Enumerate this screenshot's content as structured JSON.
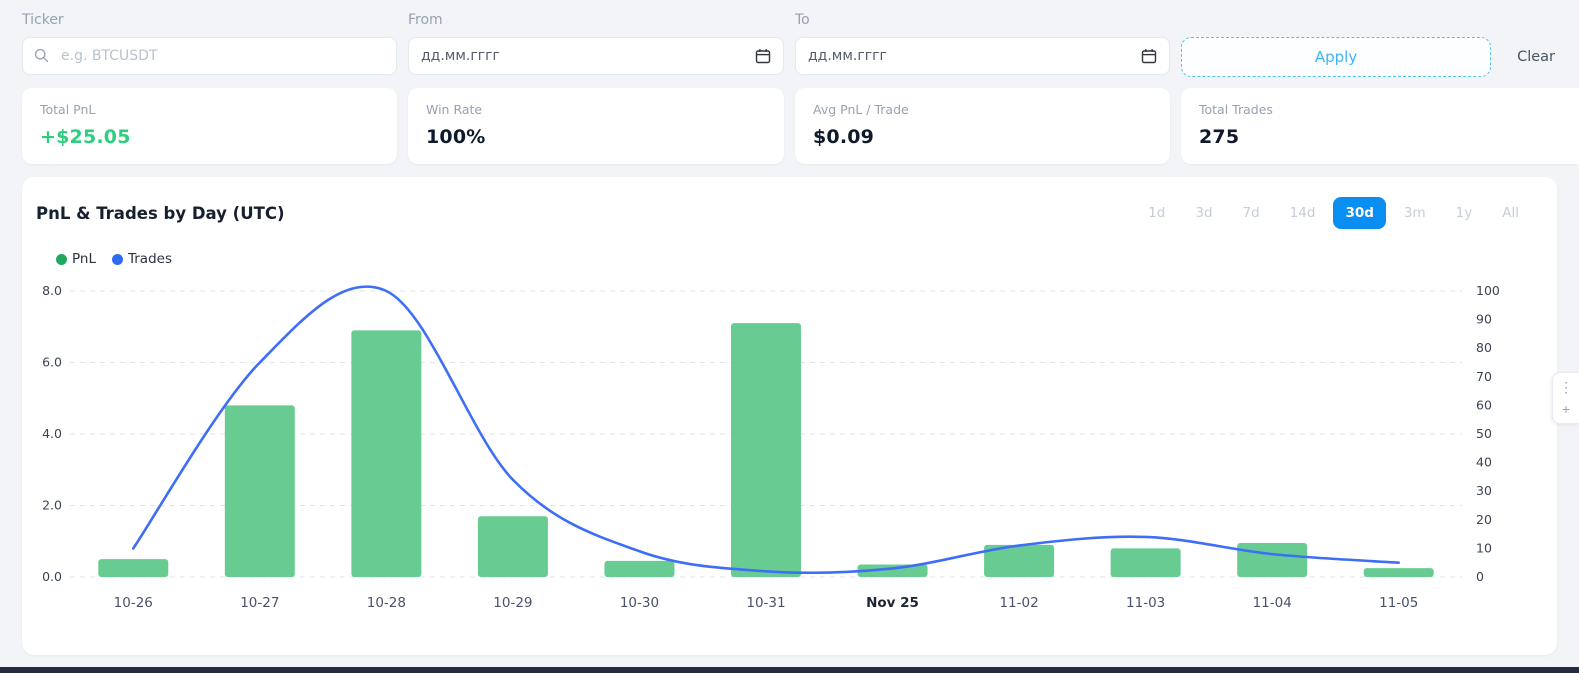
{
  "filters": {
    "ticker": {
      "label": "Ticker",
      "placeholder": "e.g. BTCUSDT",
      "value": ""
    },
    "from": {
      "label": "From",
      "placeholder": "дд.мм.гггг"
    },
    "to": {
      "label": "To",
      "placeholder": "дд.мм.гггг"
    },
    "apply_label": "Apply",
    "clear_label": "Clear"
  },
  "stats": [
    {
      "label": "Total PnL",
      "value": "+$25.05",
      "value_color": "#2fce7f"
    },
    {
      "label": "Win Rate",
      "value": "100%"
    },
    {
      "label": "Avg PnL / Trade",
      "value": "$0.09"
    },
    {
      "label": "Total Trades",
      "value": "275"
    }
  ],
  "chart": {
    "title": "PnL & Trades by Day (UTC)",
    "ranges": [
      "1d",
      "3d",
      "7d",
      "14d",
      "30d",
      "3m",
      "1y",
      "All"
    ],
    "active_range": "30d",
    "active_color": "#0b8ef2",
    "legend": [
      {
        "label": "PnL",
        "color": "#21a85e"
      },
      {
        "label": "Trades",
        "color": "#2e6bf5"
      }
    ]
  },
  "chart_data": {
    "type": "bar",
    "subtype": "bar+line-combo",
    "title": "PnL & Trades by Day (UTC)",
    "categories": [
      "10-26",
      "10-27",
      "10-28",
      "10-29",
      "10-30",
      "10-31",
      "Nov 25",
      "11-02",
      "11-03",
      "11-04",
      "11-05"
    ],
    "emphasized_category": "Nov 25",
    "series": [
      {
        "name": "PnL",
        "type": "bar",
        "axis": "left",
        "color": "#68cc92",
        "values": [
          0.5,
          4.8,
          6.9,
          1.7,
          0.45,
          7.1,
          0.35,
          0.9,
          0.8,
          0.95,
          0.25
        ]
      },
      {
        "name": "Trades",
        "type": "line",
        "axis": "right",
        "color": "#3e6ef6",
        "values": [
          10,
          75,
          100,
          34,
          9,
          2,
          3,
          11,
          14,
          8,
          5
        ]
      }
    ],
    "left_axis": {
      "min": 0,
      "max": 8,
      "ticks": [
        "0.0",
        "2.0",
        "4.0",
        "6.0",
        "8.0"
      ]
    },
    "right_axis": {
      "min": 0,
      "max": 100,
      "ticks": [
        "0",
        "10",
        "20",
        "30",
        "40",
        "50",
        "60",
        "70",
        "80",
        "90",
        "100"
      ]
    },
    "grid": "dashed-horizontal",
    "legend_position": "top-left"
  },
  "side_toolbar": {
    "buttons": [
      {
        "icon": "drag-dots",
        "glyph": "⋮"
      },
      {
        "icon": "plus",
        "glyph": "+"
      }
    ]
  }
}
